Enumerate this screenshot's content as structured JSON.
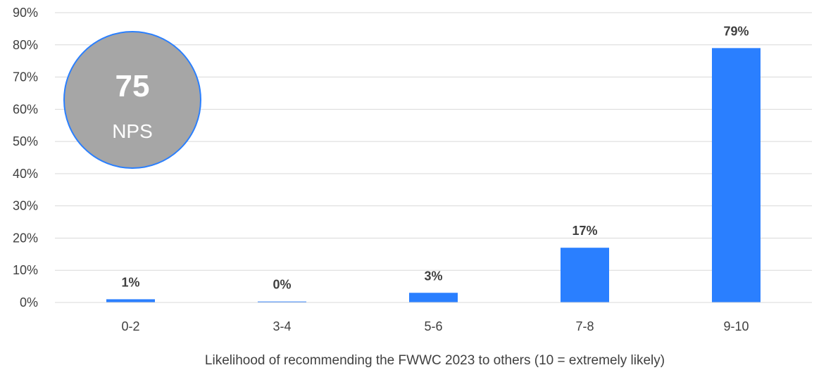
{
  "chart_data": {
    "type": "bar",
    "categories": [
      "0-2",
      "3-4",
      "5-6",
      "7-8",
      "9-10"
    ],
    "values": [
      1,
      0.3,
      3,
      17,
      79
    ],
    "data_labels": [
      "1%",
      "0%",
      "3%",
      "17%",
      "79%"
    ],
    "title": "",
    "xlabel": "Likelihood of recommending the FWWC 2023 to others (10 = extremely likely)",
    "ylabel": "",
    "ylim": [
      0,
      90
    ],
    "yticks": [
      "0%",
      "10%",
      "20%",
      "30%",
      "40%",
      "50%",
      "60%",
      "70%",
      "80%",
      "90%"
    ],
    "grid": true,
    "legend": "none",
    "bar_color": "#2a7fff",
    "annotation": {
      "value": "75",
      "label": "NPS",
      "fill": "#a6a6a6",
      "stroke": "#2a7fff"
    }
  }
}
